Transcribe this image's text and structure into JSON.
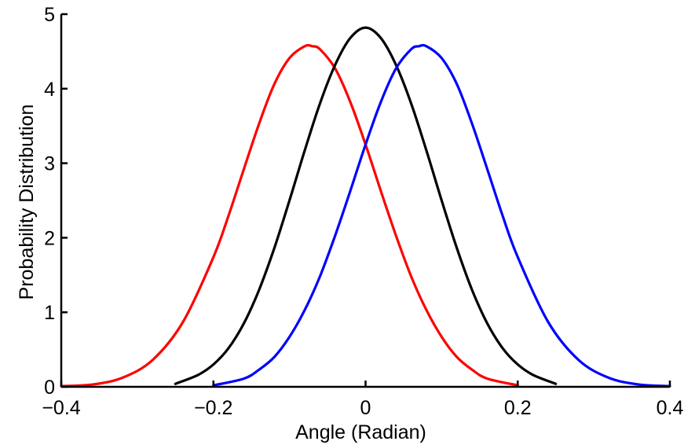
{
  "chart_data": {
    "type": "line",
    "title": "",
    "xlabel": "Angle (Radian)",
    "ylabel": "Probability Distribution",
    "xlim": [
      -0.4,
      0.4
    ],
    "ylim": [
      0,
      5
    ],
    "xticks": [
      -0.4,
      -0.2,
      0,
      0.2,
      0.4
    ],
    "xtick_labels": [
      "−0.4",
      "−0.2",
      "0",
      "0.2",
      "0.4"
    ],
    "yticks": [
      0,
      1,
      2,
      3,
      4,
      5
    ],
    "ytick_labels": [
      "0",
      "1",
      "2",
      "3",
      "4",
      "5"
    ],
    "grid": false,
    "legend": "none",
    "series": [
      {
        "color": "#ff0000",
        "x": [
          -0.4,
          -0.36,
          -0.32,
          -0.28,
          -0.24,
          -0.2,
          -0.18,
          -0.16,
          -0.14,
          -0.12,
          -0.1,
          -0.08,
          -0.07,
          -0.06,
          -0.04,
          -0.02,
          0,
          0.02,
          0.04,
          0.06,
          0.08,
          0.1,
          0.12,
          0.14,
          0.16,
          0.2
        ],
        "y": [
          0.01,
          0.03,
          0.12,
          0.36,
          0.87,
          1.74,
          2.3,
          2.92,
          3.53,
          4.06,
          4.41,
          4.57,
          4.57,
          4.53,
          4.27,
          3.82,
          3.25,
          2.63,
          2.03,
          1.48,
          1.03,
          0.67,
          0.4,
          0.23,
          0.11,
          0.02
        ]
      },
      {
        "color": "#000000",
        "x": [
          -0.25,
          -0.22,
          -0.2,
          -0.18,
          -0.16,
          -0.14,
          -0.12,
          -0.1,
          -0.08,
          -0.06,
          -0.04,
          -0.02,
          0,
          0.02,
          0.04,
          0.06,
          0.08,
          0.1,
          0.12,
          0.14,
          0.16,
          0.18,
          0.2,
          0.22,
          0.25
        ],
        "y": [
          0.04,
          0.16,
          0.3,
          0.52,
          0.85,
          1.3,
          1.86,
          2.5,
          3.17,
          3.8,
          4.32,
          4.68,
          4.82,
          4.68,
          4.32,
          3.8,
          3.17,
          2.5,
          1.86,
          1.3,
          0.85,
          0.52,
          0.3,
          0.16,
          0.04
        ]
      },
      {
        "color": "#0000ff",
        "x": [
          -0.2,
          -0.16,
          -0.14,
          -0.12,
          -0.1,
          -0.08,
          -0.06,
          -0.04,
          -0.02,
          0,
          0.02,
          0.04,
          0.06,
          0.07,
          0.08,
          0.1,
          0.12,
          0.14,
          0.16,
          0.18,
          0.2,
          0.24,
          0.28,
          0.32,
          0.36,
          0.4
        ],
        "y": [
          0.02,
          0.11,
          0.23,
          0.4,
          0.67,
          1.03,
          1.48,
          2.03,
          2.63,
          3.25,
          3.82,
          4.27,
          4.53,
          4.57,
          4.57,
          4.41,
          4.06,
          3.53,
          2.92,
          2.3,
          1.74,
          0.87,
          0.36,
          0.12,
          0.03,
          0.01
        ]
      }
    ]
  }
}
